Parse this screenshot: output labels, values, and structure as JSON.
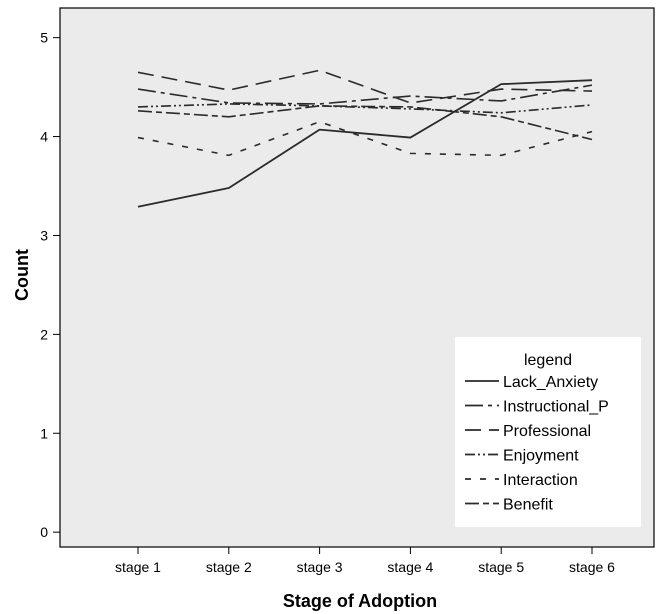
{
  "chart_data": {
    "type": "line",
    "title": "",
    "xlabel": "Stage of Adoption",
    "ylabel": "Count",
    "categories": [
      "stage 1",
      "stage 2",
      "stage 3",
      "stage 4",
      "stage 5",
      "stage 6"
    ],
    "ylim": [
      -0.15,
      5.3
    ],
    "yticks": [
      0,
      1,
      2,
      3,
      4,
      5
    ],
    "grid": false,
    "plot_background": "#ebebeb",
    "legend": {
      "title": "legend",
      "placement": "bottom-right"
    },
    "series": [
      {
        "name": "Lack_Anxiety",
        "style": "solid",
        "values": [
          3.29,
          3.48,
          4.07,
          3.99,
          4.53,
          4.57
        ]
      },
      {
        "name": "Instructional_P",
        "style": "long-dash",
        "values": [
          4.48,
          4.34,
          4.33,
          4.41,
          4.36,
          4.52
        ]
      },
      {
        "name": "Professional",
        "style": "dash",
        "values": [
          4.65,
          4.47,
          4.67,
          4.34,
          4.48,
          4.46
        ]
      },
      {
        "name": "Enjoyment",
        "style": "dash-dot-dot",
        "values": [
          4.3,
          4.33,
          4.31,
          4.28,
          4.24,
          4.32
        ]
      },
      {
        "name": "Interaction",
        "style": "short-dash",
        "values": [
          3.99,
          3.81,
          4.15,
          3.83,
          3.81,
          4.05
        ]
      },
      {
        "name": "Benefit",
        "style": "dash-dot",
        "values": [
          4.26,
          4.2,
          4.31,
          4.3,
          4.2,
          3.97
        ]
      }
    ]
  }
}
